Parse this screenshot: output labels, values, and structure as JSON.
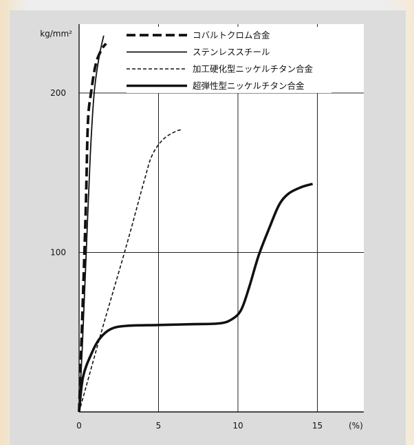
{
  "chart_data": {
    "type": "line",
    "y_unit_label": "kg/mm²",
    "x_unit_label": "(%)",
    "xlim": [
      0,
      17
    ],
    "ylim": [
      0,
      240
    ],
    "x_ticks": [
      0,
      5,
      10,
      15
    ],
    "y_ticks": [
      100,
      200
    ],
    "grid": true,
    "legend_placement": "top",
    "series": [
      {
        "name": "コバルトクロム合金",
        "style": "thick-dashed",
        "points": [
          [
            0,
            0
          ],
          [
            0.4,
            120
          ],
          [
            0.55,
            180
          ],
          [
            0.75,
            200
          ],
          [
            1.05,
            218
          ],
          [
            1.4,
            227
          ],
          [
            1.7,
            231
          ]
        ]
      },
      {
        "name": "ステンレススチール",
        "style": "thin-solid",
        "points": [
          [
            0,
            0
          ],
          [
            0.2,
            40
          ],
          [
            0.45,
            100
          ],
          [
            0.7,
            160
          ],
          [
            0.95,
            200
          ],
          [
            1.25,
            222
          ],
          [
            1.55,
            236
          ]
        ]
      },
      {
        "name": "加工硬化型ニッケルチタン合金",
        "style": "thin-dashed",
        "points": [
          [
            0,
            0
          ],
          [
            1.4,
            50
          ],
          [
            3.0,
            105
          ],
          [
            4.1,
            145
          ],
          [
            4.6,
            161
          ],
          [
            5.3,
            171
          ],
          [
            6.1,
            176
          ],
          [
            6.5,
            177
          ]
        ]
      },
      {
        "name": "超弾性型ニッケルチタン合金",
        "style": "thick-solid",
        "points": [
          [
            0,
            0
          ],
          [
            0.25,
            22
          ],
          [
            0.8,
            37
          ],
          [
            1.3,
            46
          ],
          [
            2.0,
            52
          ],
          [
            3.0,
            54
          ],
          [
            5.0,
            54.5
          ],
          [
            7.0,
            55
          ],
          [
            8.8,
            55.5
          ],
          [
            9.6,
            58
          ],
          [
            10.2,
            64
          ],
          [
            10.7,
            78
          ],
          [
            11.3,
            98
          ],
          [
            12.0,
            116
          ],
          [
            12.6,
            130
          ],
          [
            13.2,
            137
          ],
          [
            14.0,
            141
          ],
          [
            14.7,
            143
          ]
        ]
      }
    ]
  }
}
